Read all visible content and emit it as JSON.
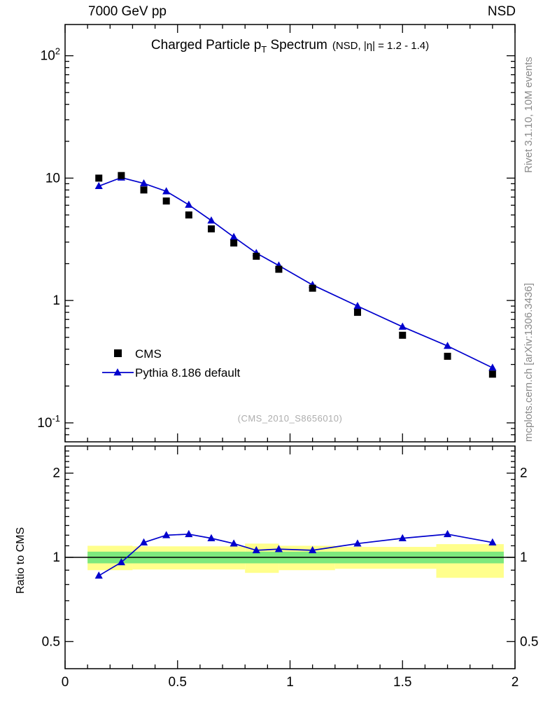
{
  "header": {
    "left": "7000 GeV pp",
    "right": "NSD"
  },
  "title": {
    "part1": "Charged Particle p",
    "sub": "T",
    "part2": " Spectrum",
    "suffix": "(NSD, |η| = 1.2 - 1.4)"
  },
  "watermark": "(CMS_2010_S8656010)",
  "side_notes": {
    "top": "Rivet 3.1.10,  10M events",
    "bottom": "mcplots.cern.ch [arXiv:1306.3436]"
  },
  "ratio_label": "Ratio to CMS",
  "legend": {
    "items": [
      {
        "label": "CMS"
      },
      {
        "label": "Pythia 8.186 default"
      }
    ]
  },
  "colors": {
    "cms": "#000000",
    "pythia": "#0000cd",
    "band_yellow": "#ffff8c",
    "band_green": "#7de87d",
    "note_gray": "#8a8a8a",
    "watermark_gray": "#adadad"
  },
  "chart_data": {
    "type": "line",
    "title": "Charged Particle pT Spectrum (NSD, |η| = 1.2 - 1.4)",
    "x": [
      0.15,
      0.25,
      0.35,
      0.45,
      0.55,
      0.65,
      0.75,
      0.85,
      0.95,
      1.1,
      1.3,
      1.5,
      1.7,
      1.9
    ],
    "series": [
      {
        "name": "CMS",
        "marker": "square",
        "color": "#000000",
        "values": [
          10.0,
          10.5,
          8.0,
          6.5,
          5.0,
          3.85,
          2.95,
          2.3,
          1.8,
          1.26,
          0.8,
          0.52,
          0.35,
          0.25
        ]
      },
      {
        "name": "Pythia 8.186 default",
        "marker": "triangle",
        "line": true,
        "color": "#0000cd",
        "values": [
          8.6,
          10.1,
          9.05,
          7.8,
          6.05,
          4.5,
          3.3,
          2.44,
          1.93,
          1.34,
          0.9,
          0.61,
          0.425,
          0.282
        ]
      }
    ],
    "ratio": {
      "name": "Pythia 8.186 default / CMS",
      "values": [
        0.86,
        0.96,
        1.13,
        1.2,
        1.21,
        1.17,
        1.12,
        1.06,
        1.07,
        1.06,
        1.12,
        1.17,
        1.21,
        1.13
      ],
      "bands": {
        "yellow": [
          [
            0.1,
            0.3,
            0.9,
            1.1
          ],
          [
            0.3,
            0.8,
            0.905,
            1.095
          ],
          [
            0.8,
            0.95,
            0.88,
            1.12
          ],
          [
            0.95,
            1.2,
            0.9,
            1.1
          ],
          [
            1.2,
            1.65,
            0.91,
            1.09
          ],
          [
            1.65,
            1.95,
            0.845,
            1.115
          ]
        ],
        "green": [
          [
            0.1,
            1.95,
            0.952,
            1.048
          ]
        ]
      }
    },
    "axes": {
      "xlim": [
        0,
        2
      ],
      "x": {
        "ticks": [
          {
            "v": 0,
            "label": "0"
          },
          {
            "v": 0.5,
            "label": "0.5"
          },
          {
            "v": 1,
            "label": "1"
          },
          {
            "v": 1.5,
            "label": "1.5"
          },
          {
            "v": 2,
            "label": "2"
          }
        ],
        "minor_step": 0.1
      },
      "top": {
        "ylog": true,
        "ylim": [
          0.07,
          180
        ],
        "yticks": [
          {
            "v": 100,
            "label": "10",
            "exp": "2"
          },
          {
            "v": 10,
            "label": "10"
          },
          {
            "v": 1,
            "label": "1"
          },
          {
            "v": 0.1,
            "label": "10",
            "exp": "-1"
          }
        ]
      },
      "ratio": {
        "ylog": true,
        "ylim": [
          0.4,
          2.5
        ],
        "ylabel": "Ratio to CMS",
        "yticks": [
          {
            "v": 2,
            "label": "2"
          },
          {
            "v": 1,
            "label": "1"
          },
          {
            "v": 0.5,
            "label": "0.5"
          }
        ],
        "minor": [
          0.6,
          0.7,
          0.8,
          0.9,
          1.1,
          1.2,
          1.3,
          1.4,
          1.5,
          1.6,
          1.7,
          1.8,
          1.9,
          2.1,
          2.2,
          2.3,
          2.4
        ]
      }
    }
  }
}
